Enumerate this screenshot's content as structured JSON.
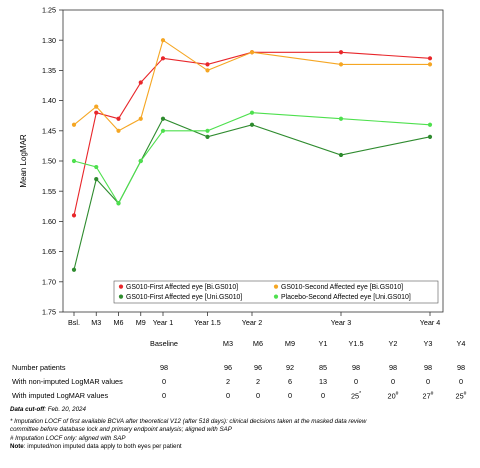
{
  "chart_data": {
    "type": "line",
    "ylabel": "Mean LogMAR",
    "y_reversed": true,
    "ylim": [
      1.25,
      1.75
    ],
    "yticks": [
      1.25,
      1.3,
      1.35,
      1.4,
      1.45,
      1.5,
      1.55,
      1.6,
      1.65,
      1.7,
      1.75
    ],
    "ytick_labels": [
      "1.25",
      "1.30",
      "1.35",
      "1.40",
      "1.45",
      "1.50",
      "1.55",
      "1.60",
      "1.65",
      "1.70",
      "1.75"
    ],
    "grid": false,
    "legend_placement": "bottom-inside",
    "x_tick_labels": [
      {
        "label": "Bsl.",
        "x": 0
      },
      {
        "label": "M3",
        "x": 3
      },
      {
        "label": "M6",
        "x": 6
      },
      {
        "label": "M9",
        "x": 9
      },
      {
        "label": "Year 1",
        "x": 12
      },
      {
        "label": "Year 1.5",
        "x": 18
      },
      {
        "label": "Year 2",
        "x": 24
      },
      {
        "label": "Year 3",
        "x": 36
      },
      {
        "label": "Year 4",
        "x": 48
      }
    ],
    "series": [
      {
        "name": "GS010-First Affected eye [Bi.GS010]",
        "color": "#e8262a",
        "x": [
          0,
          3,
          6,
          9,
          12,
          18,
          24,
          36,
          48
        ],
        "y": [
          1.59,
          1.42,
          1.43,
          1.37,
          1.33,
          1.34,
          1.32,
          1.32,
          1.33
        ]
      },
      {
        "name": "GS010-Second Affected eye [Bi.GS010]",
        "color": "#f5a623",
        "x": [
          0,
          3,
          6,
          9,
          12,
          18,
          24,
          36,
          48
        ],
        "y": [
          1.44,
          1.41,
          1.45,
          1.43,
          1.3,
          1.35,
          1.32,
          1.34,
          1.34
        ]
      },
      {
        "name": "GS010-First Affected eye [Uni.GS010]",
        "color": "#2e8b2e",
        "x": [
          0,
          3,
          6,
          9,
          12,
          18,
          24,
          36,
          48
        ],
        "y": [
          1.68,
          1.53,
          1.57,
          1.5,
          1.43,
          1.46,
          1.44,
          1.49,
          1.46
        ]
      },
      {
        "name": "Placebo-Second Affected eye [Uni.GS010]",
        "color": "#4ee04e",
        "x": [
          0,
          3,
          6,
          9,
          12,
          18,
          24,
          36,
          48
        ],
        "y": [
          1.5,
          1.51,
          1.57,
          1.5,
          1.45,
          1.45,
          1.42,
          1.43,
          1.44
        ]
      }
    ]
  },
  "table": {
    "headers": [
      "Baseline",
      "M3",
      "M6",
      "M9",
      "Y1",
      "Y1.5",
      "Y2",
      "Y3",
      "Y4"
    ],
    "rows": [
      {
        "label": "Number patients",
        "values": [
          "98",
          "96",
          "96",
          "92",
          "85",
          "98",
          "98",
          "98",
          "98"
        ],
        "marks": [
          "",
          "",
          "",
          "",
          "",
          "",
          "",
          "",
          ""
        ]
      },
      {
        "label": "With non-imputed LogMAR values",
        "values": [
          "0",
          "2",
          "2",
          "6",
          "13",
          "0",
          "0",
          "0",
          "0"
        ],
        "marks": [
          "",
          "",
          "",
          "",
          "",
          "",
          "",
          "",
          ""
        ]
      },
      {
        "label": "With imputed LogMAR values",
        "values": [
          "0",
          "0",
          "0",
          "0",
          "0",
          "25",
          "20",
          "27",
          "25"
        ],
        "marks": [
          "",
          "",
          "",
          "",
          "",
          "*",
          "#",
          "#",
          "#"
        ]
      }
    ]
  },
  "notes": {
    "cutoff_label": "Data cut-off",
    "cutoff_value": ": Feb. 20, 2024",
    "imputation_1": "* Imputation LOCF of first available BCVA after theoretical V12 (after 518 days): clinical decisions taken at the masked data review",
    "imputation_2": "committee before database lock and primary endpoint analysis; aligned with SAP",
    "imputation_3": "# Imputation LOCF only: aligned with SAP",
    "note_label": "Note",
    "note_text": ": imputed/non imputed data apply to both eyes per patient"
  }
}
